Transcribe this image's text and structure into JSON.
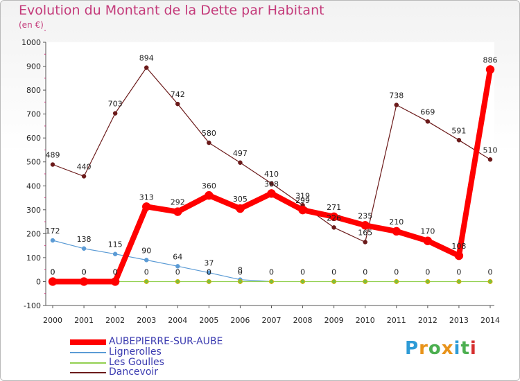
{
  "title": "Evolution du Montant de la Dette par Habitant",
  "subtitle": "(en €)",
  "logo": {
    "text": "Proxiti",
    "colors": [
      "#2e9bd6",
      "#e8931a",
      "#4caf50",
      "#e8931a",
      "#2e9bd6",
      "#4caf50",
      "#d62e2e"
    ]
  },
  "chart_data": {
    "type": "line",
    "categories": [
      "2000",
      "2001",
      "2002",
      "2003",
      "2004",
      "2005",
      "2006",
      "2007",
      "2008",
      "2009",
      "2010",
      "2011",
      "2012",
      "2013",
      "2014"
    ],
    "ylim": [
      -100,
      1000
    ],
    "yticks": [
      -100,
      0,
      100,
      200,
      300,
      400,
      500,
      600,
      700,
      800,
      900,
      1000
    ],
    "grid": false,
    "legend_position": "bottom-left",
    "series": [
      {
        "name": "AUBEPIERRE-SUR-AUBE",
        "color": "#ff0000",
        "width": 8,
        "marker": 6,
        "values": [
          0,
          0,
          0,
          313,
          292,
          360,
          305,
          368,
          299,
          271,
          235,
          210,
          170,
          108,
          886
        ],
        "labels": [
          "0",
          "0",
          "0",
          "313",
          "292",
          "360",
          "305",
          "368",
          "299",
          "271",
          "235",
          "210",
          "170",
          "108",
          "886"
        ]
      },
      {
        "name": "Lignerolles",
        "color": "#5b9bd5",
        "width": 1.2,
        "marker": 3,
        "values": [
          172,
          138,
          115,
          90,
          64,
          37,
          8,
          0,
          null,
          null,
          null,
          null,
          null,
          null,
          null
        ],
        "labels": [
          "172",
          "138",
          "115",
          "90",
          "64",
          "37",
          "8",
          "",
          "",
          "",
          "",
          "",
          "",
          "",
          ""
        ]
      },
      {
        "name": "Les Goulles",
        "color": "#92d050",
        "width": 1.2,
        "marker": 3,
        "values": [
          0,
          0,
          0,
          0,
          0,
          0,
          0,
          0,
          0,
          0,
          0,
          0,
          0,
          0,
          0
        ],
        "labels": [
          "0",
          "0",
          "0",
          "0",
          "0",
          "0",
          "0",
          "0",
          "0",
          "0",
          "0",
          "0",
          "0",
          "0",
          "0"
        ]
      },
      {
        "name": "Dancevoir",
        "color": "#6b1a1a",
        "width": 1.2,
        "marker": 3,
        "values": [
          489,
          440,
          703,
          894,
          742,
          580,
          497,
          410,
          319,
          226,
          165,
          738,
          669,
          591,
          510
        ],
        "labels": [
          "489",
          "440",
          "703",
          "894",
          "742",
          "580",
          "497",
          "410",
          "319",
          "226",
          "165",
          "738",
          "669",
          "591",
          "510"
        ]
      }
    ]
  }
}
